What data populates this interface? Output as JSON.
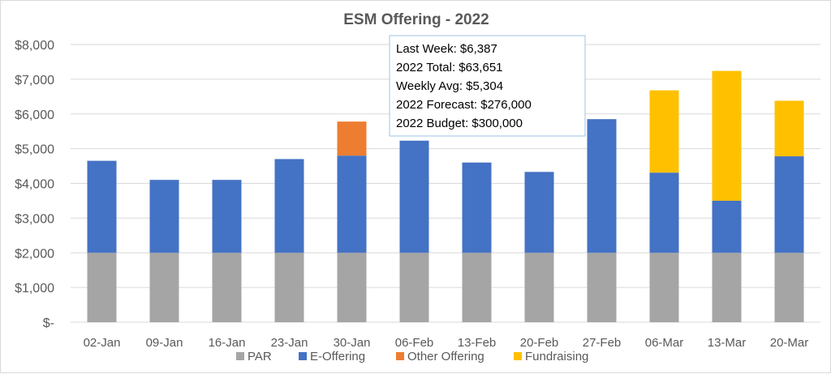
{
  "chart_data": {
    "type": "bar",
    "stacked": true,
    "title": "ESM Offering - 2022",
    "categories": [
      "02-Jan",
      "09-Jan",
      "16-Jan",
      "23-Jan",
      "30-Jan",
      "06-Feb",
      "13-Feb",
      "20-Feb",
      "27-Feb",
      "06-Mar",
      "13-Mar",
      "20-Mar"
    ],
    "series": [
      {
        "name": "PAR",
        "color": "#a5a5a5",
        "values": [
          2000,
          2000,
          2000,
          2000,
          2000,
          2000,
          2000,
          2000,
          2000,
          2000,
          2000,
          2000
        ]
      },
      {
        "name": "E-Offering",
        "color": "#4472c4",
        "values": [
          2650,
          2100,
          2100,
          2700,
          2800,
          3230,
          2600,
          2330,
          3850,
          2310,
          1500,
          2780
        ]
      },
      {
        "name": "Other Offering",
        "color": "#ed7d31",
        "values": [
          0,
          0,
          0,
          0,
          980,
          0,
          0,
          0,
          0,
          0,
          0,
          0
        ]
      },
      {
        "name": "Fundraising",
        "color": "#ffc000",
        "values": [
          0,
          0,
          0,
          0,
          0,
          0,
          0,
          0,
          0,
          2370,
          3740,
          1600
        ]
      }
    ],
    "ylim": [
      0,
      8000
    ],
    "yticks": [
      0,
      1000,
      2000,
      3000,
      4000,
      5000,
      6000,
      7000,
      8000
    ],
    "ytick_labels": [
      "$-",
      "$1,000",
      "$2,000",
      "$3,000",
      "$4,000",
      "$5,000",
      "$6,000",
      "$7,000",
      "$8,000"
    ],
    "grid": true,
    "legend_position": "bottom",
    "annotation": [
      "Last Week: $6,387",
      "2022 Total: $63,651",
      "Weekly Avg: $5,304",
      "2022 Forecast: $276,000",
      "2022 Budget: $300,000"
    ]
  }
}
